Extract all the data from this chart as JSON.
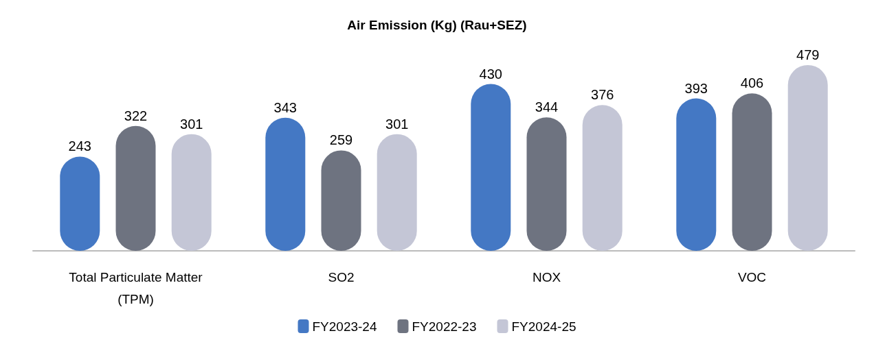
{
  "chart_data": {
    "type": "bar",
    "title": "Air Emission (Kg) (Rau+SEZ)",
    "categories": [
      "Total Particulate Matter\n(TPM)",
      "SO2",
      "NOX",
      "VOC"
    ],
    "series": [
      {
        "name": "FY2023-24",
        "color": "#4478c4",
        "values": [
          243,
          343,
          430,
          393
        ]
      },
      {
        "name": "FY2022-23",
        "color": "#6e7380",
        "values": [
          322,
          259,
          344,
          406
        ]
      },
      {
        "name": "FY2024-25",
        "color": "#c4c6d6",
        "values": [
          301,
          301,
          376,
          479
        ]
      }
    ],
    "data_labels": true,
    "legend": "bottom"
  }
}
